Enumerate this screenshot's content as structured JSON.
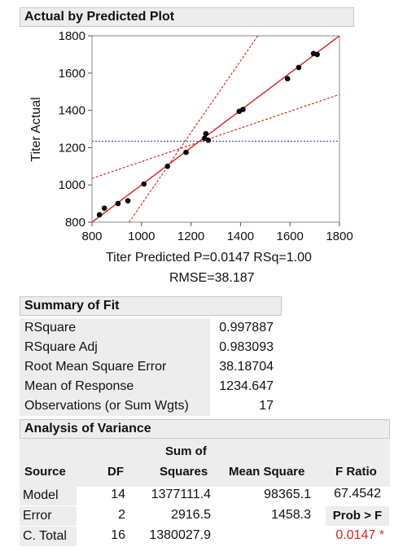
{
  "plot": {
    "title": "Actual by Predicted Plot",
    "xlabel": "Titer Predicted P=0.0147 RSq=1.00",
    "rmse_label": "RMSE=38.187",
    "ylabel": "Titer Actual"
  },
  "chart_data": {
    "type": "scatter",
    "title": "Actual by Predicted Plot",
    "xlabel": "Titer Predicted P=0.0147 RSq=1.00",
    "ylabel": "Titer Actual",
    "xlim": [
      800,
      1800
    ],
    "ylim": [
      800,
      1800
    ],
    "x_ticks": [
      "800",
      "1000",
      "1200",
      "1400",
      "1600",
      "1800"
    ],
    "y_ticks": [
      "800",
      "1000",
      "1200",
      "1400",
      "1600",
      "1800"
    ],
    "points": [
      {
        "x": 830,
        "y": 840
      },
      {
        "x": 850,
        "y": 875
      },
      {
        "x": 905,
        "y": 900
      },
      {
        "x": 945,
        "y": 915
      },
      {
        "x": 1010,
        "y": 1005
      },
      {
        "x": 1105,
        "y": 1100
      },
      {
        "x": 1180,
        "y": 1175
      },
      {
        "x": 1255,
        "y": 1250
      },
      {
        "x": 1260,
        "y": 1275
      },
      {
        "x": 1270,
        "y": 1240
      },
      {
        "x": 1395,
        "y": 1395
      },
      {
        "x": 1410,
        "y": 1405
      },
      {
        "x": 1590,
        "y": 1570
      },
      {
        "x": 1635,
        "y": 1630
      },
      {
        "x": 1695,
        "y": 1705
      },
      {
        "x": 1710,
        "y": 1700
      }
    ],
    "mean_response": 1234.647,
    "fit_line": "y = x",
    "confidence_curves": [
      {
        "x1": 800,
        "y1": 1035,
        "x2": 1800,
        "y2": 1485
      },
      {
        "x1": 950,
        "y1": 800,
        "x2": 1470,
        "y2": 1800
      }
    ],
    "colors": {
      "fit": "#d62020",
      "confidence": "#d62020",
      "mean": "#3a56c8",
      "points": "#000000"
    },
    "grid": false
  },
  "summary_of_fit": {
    "title": "Summary of Fit",
    "rows": [
      {
        "label": "RSquare",
        "value": "0.997887"
      },
      {
        "label": "RSquare Adj",
        "value": "0.983093"
      },
      {
        "label": "Root Mean Square Error",
        "value": "38.18704"
      },
      {
        "label": "Mean of Response",
        "value": "1234.647"
      },
      {
        "label": "Observations (or Sum Wgts)",
        "value": "17"
      }
    ]
  },
  "anova": {
    "title": "Analysis of Variance",
    "headers": {
      "source": "Source",
      "df": "DF",
      "ss_top": "Sum of",
      "ss_bottom": "Squares",
      "ms": "Mean Square",
      "f": "F Ratio"
    },
    "rows": [
      {
        "source": "Model",
        "df": "14",
        "ss": "1377111.4",
        "ms": "98365.1",
        "f": "67.4542"
      },
      {
        "source": "Error",
        "df": "2",
        "ss": "2916.5",
        "ms": "1458.3",
        "f": ""
      },
      {
        "source": "C. Total",
        "df": "16",
        "ss": "1380027.9",
        "ms": "",
        "f": ""
      }
    ],
    "prob_label": "Prob > F",
    "prob_value": "0.0147 *",
    "prob_color": "#e02020"
  }
}
